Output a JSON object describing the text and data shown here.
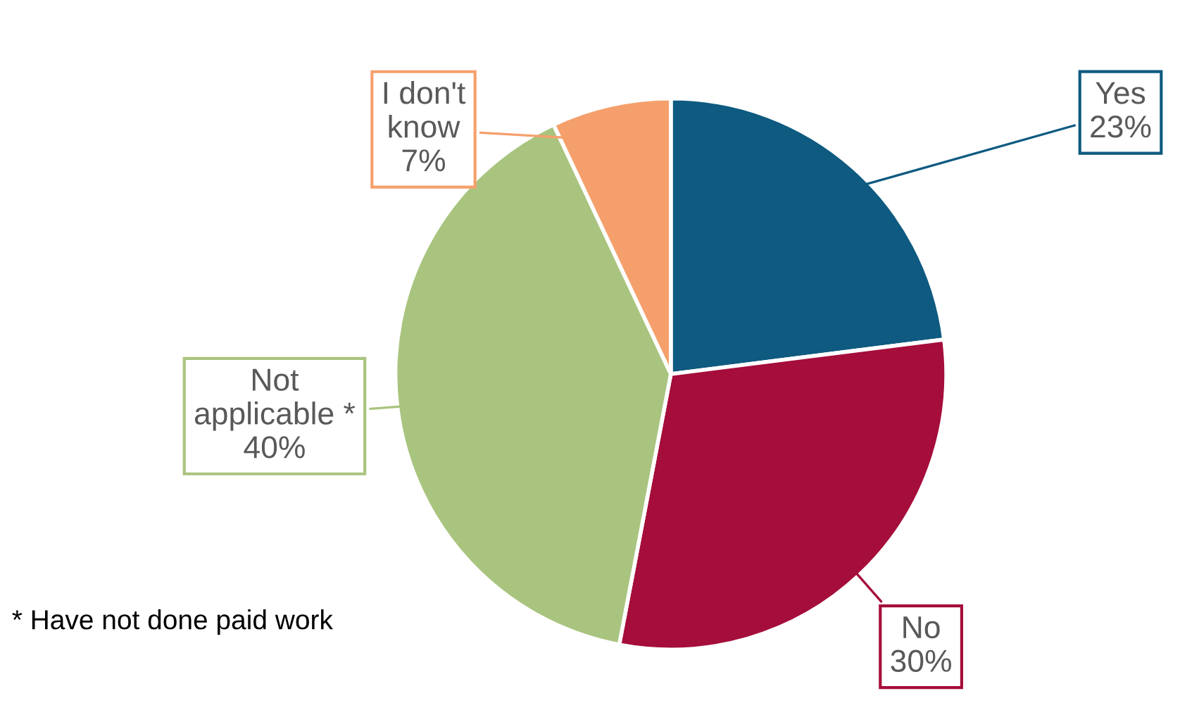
{
  "chart_data": {
    "type": "pie",
    "categories": [
      "Yes",
      "No",
      "Not\napplicable *",
      "I don't\nknow"
    ],
    "values": [
      23,
      30,
      40,
      7
    ],
    "value_labels": [
      "23%",
      "30%",
      "40%",
      "7%"
    ],
    "colors": [
      "#0e5a80",
      "#a50d3b",
      "#a9c47f",
      "#f5a06c"
    ],
    "annotations": [
      "* Have not done paid work"
    ],
    "legend": false
  }
}
